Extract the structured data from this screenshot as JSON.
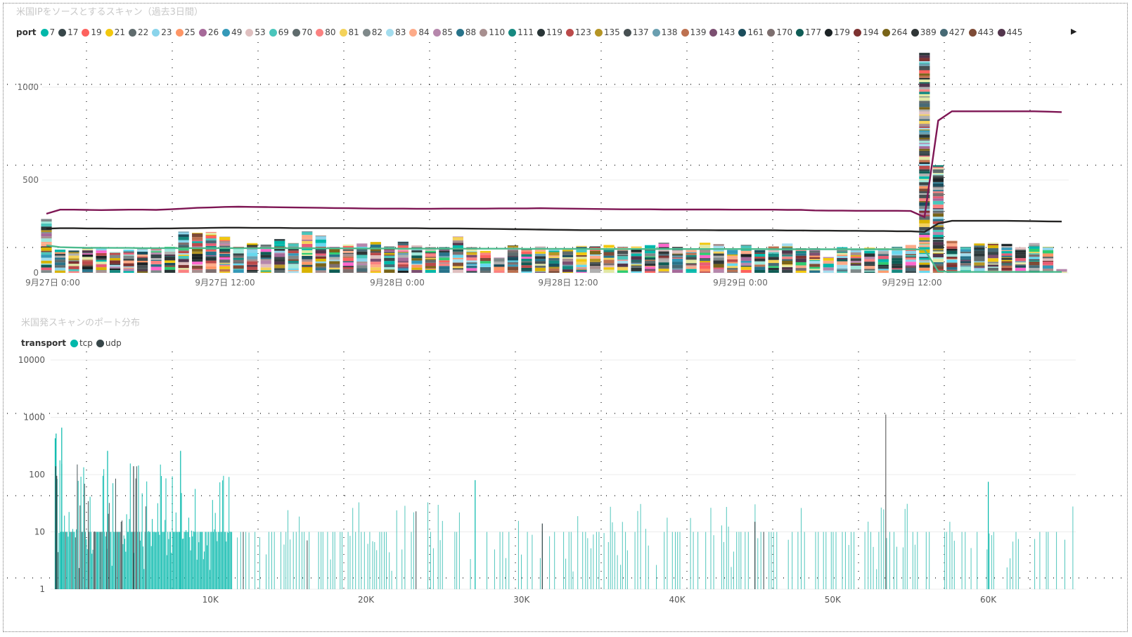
{
  "top_panel": {
    "title": "米国IPをソースとするスキャン（過去3日間）",
    "legend_title": "port",
    "legend_more_icon": "triangle-right-icon"
  },
  "bottom_panel": {
    "title": "米国発スキャンのポート分布",
    "legend_title": "transport"
  },
  "chart_data": [
    {
      "type": "bar",
      "stacked": true,
      "title": "米国IPをソースとするスキャン（過去3日間）",
      "legend_title": "port",
      "legend_position": "top-left",
      "grid": true,
      "ylim": [
        0,
        1200
      ],
      "y_ticks": [
        0,
        500,
        1000
      ],
      "x_ticks": [
        "9月27日 0:00",
        "9月27日 12:00",
        "9月28日 0:00",
        "9月28日 12:00",
        "9月29日 0:00",
        "9月29日 12:00"
      ],
      "ports": [
        {
          "name": "7",
          "color": "#01B8AA"
        },
        {
          "name": "17",
          "color": "#374649"
        },
        {
          "name": "19",
          "color": "#FD625E"
        },
        {
          "name": "21",
          "color": "#F2C80F"
        },
        {
          "name": "22",
          "color": "#5F6B6D"
        },
        {
          "name": "23",
          "color": "#8AD4EB"
        },
        {
          "name": "25",
          "color": "#FE9666"
        },
        {
          "name": "26",
          "color": "#A66999"
        },
        {
          "name": "49",
          "color": "#3599B8"
        },
        {
          "name": "53",
          "color": "#DFBFBF"
        },
        {
          "name": "69",
          "color": "#4AC5BB"
        },
        {
          "name": "70",
          "color": "#5F6B6D"
        },
        {
          "name": "80",
          "color": "#FB8281"
        },
        {
          "name": "81",
          "color": "#F4D25A"
        },
        {
          "name": "82",
          "color": "#7F898A"
        },
        {
          "name": "83",
          "color": "#A4DDEE"
        },
        {
          "name": "84",
          "color": "#FDAB89"
        },
        {
          "name": "85",
          "color": "#B687AC"
        },
        {
          "name": "88",
          "color": "#28738A"
        },
        {
          "name": "110",
          "color": "#A78F8F"
        },
        {
          "name": "111",
          "color": "#168980"
        },
        {
          "name": "119",
          "color": "#293537"
        },
        {
          "name": "123",
          "color": "#BB4A4A"
        },
        {
          "name": "135",
          "color": "#B59525"
        },
        {
          "name": "137",
          "color": "#475052"
        },
        {
          "name": "138",
          "color": "#6A9FB0"
        },
        {
          "name": "139",
          "color": "#BD7150"
        },
        {
          "name": "143",
          "color": "#7B4F71"
        },
        {
          "name": "161",
          "color": "#1B4D5C"
        },
        {
          "name": "170",
          "color": "#7D6F6F"
        },
        {
          "name": "177",
          "color": "#0F5C55"
        },
        {
          "name": "179",
          "color": "#1C2325"
        },
        {
          "name": "194",
          "color": "#7D3231"
        },
        {
          "name": "264",
          "color": "#796419"
        },
        {
          "name": "389",
          "color": "#303637"
        },
        {
          "name": "427",
          "color": "#476A75"
        },
        {
          "name": "443",
          "color": "#7E4B36"
        },
        {
          "name": "445",
          "color": "#52354C"
        }
      ],
      "totals": [
        290,
        125,
        120,
        132,
        138,
        112,
        125,
        135,
        130,
        140,
        222,
        215,
        220,
        195,
        140,
        160,
        152,
        182,
        160,
        222,
        200,
        140,
        152,
        158,
        166,
        142,
        168,
        148,
        138,
        138,
        195,
        138,
        118,
        82,
        148,
        130,
        142,
        132,
        128,
        145,
        142,
        150,
        140,
        142,
        150,
        162,
        140,
        130,
        162,
        155,
        130,
        150,
        122,
        142,
        158,
        132,
        132,
        85,
        138,
        130,
        135,
        132,
        140,
        150,
        1185,
        580,
        172,
        140,
        158,
        162,
        156,
        138,
        160,
        140,
        20
      ],
      "lines": [
        {
          "color": "#7E1654",
          "values": [
            318,
            340,
            340,
            339,
            338,
            339,
            340,
            340,
            339,
            342,
            346,
            350,
            352,
            355,
            356,
            355,
            354,
            353,
            352,
            351,
            350,
            349,
            348,
            347,
            346,
            346,
            346,
            345,
            345,
            346,
            346,
            346,
            346,
            347,
            347,
            347,
            348,
            347,
            346,
            345,
            344,
            343,
            342,
            342,
            342,
            341,
            341,
            341,
            341,
            341,
            340,
            340,
            340,
            340,
            339,
            339,
            336,
            335,
            335,
            334,
            334,
            334,
            334,
            333,
            300,
            820,
            870,
            870,
            870,
            870,
            870,
            870,
            870,
            868,
            866
          ]
        },
        {
          "color": "#252423",
          "values": [
            238,
            240,
            240,
            239,
            239,
            238,
            238,
            238,
            239,
            239,
            240,
            241,
            242,
            243,
            243,
            242,
            242,
            242,
            241,
            241,
            241,
            241,
            241,
            240,
            240,
            240,
            240,
            240,
            239,
            239,
            239,
            238,
            237,
            236,
            235,
            234,
            233,
            232,
            231,
            230,
            230,
            230,
            230,
            230,
            230,
            230,
            230,
            230,
            230,
            229,
            229,
            229,
            229,
            229,
            228,
            228,
            227,
            227,
            226,
            226,
            225,
            225,
            224,
            224,
            220,
            265,
            280,
            280,
            280,
            280,
            280,
            279,
            278,
            277,
            276
          ]
        },
        {
          "color": "#4CBB8E",
          "values": [
            148,
            138,
            136,
            135,
            135,
            134,
            134,
            133,
            133,
            133,
            133,
            133,
            133,
            133,
            133,
            133,
            133,
            133,
            133,
            133,
            132,
            132,
            132,
            131,
            131,
            131,
            130,
            130,
            130,
            130,
            130,
            130,
            130,
            130,
            130,
            129,
            129,
            129,
            129,
            129,
            128,
            128,
            128,
            128,
            128,
            128,
            128,
            128,
            128,
            128,
            128,
            128,
            128,
            127,
            127,
            127,
            127,
            127,
            127,
            127,
            127,
            127,
            127,
            127,
            125,
            8,
            5,
            5,
            5,
            5,
            5,
            5,
            5,
            5,
            5
          ]
        }
      ]
    },
    {
      "type": "bar",
      "title": "米国発スキャンのポート分布",
      "legend_title": "transport",
      "legend_position": "top-left",
      "series": [
        {
          "name": "tcp",
          "color": "#01B8AA"
        },
        {
          "name": "udp",
          "color": "#374649"
        }
      ],
      "y_scale": "log",
      "ylim": [
        1,
        10000
      ],
      "y_ticks": [
        1,
        10,
        100,
        1000,
        10000
      ],
      "xlim": [
        0,
        65535
      ],
      "x_ticks": [
        10000,
        20000,
        30000,
        40000,
        50000,
        60000
      ],
      "x_tick_labels": [
        "10K",
        "20K",
        "30K",
        "40K",
        "50K",
        "60K"
      ],
      "peaks": [
        {
          "series": "tcp",
          "x": 80,
          "y": 520
        },
        {
          "series": "tcp",
          "x": 443,
          "y": 660
        },
        {
          "series": "tcp",
          "x": 22,
          "y": 430
        },
        {
          "series": "udp",
          "x": 123,
          "y": 95
        },
        {
          "series": "udp",
          "x": 53,
          "y": 140
        },
        {
          "series": "udp",
          "x": 5060,
          "y": 140
        },
        {
          "series": "tcp",
          "x": 3389,
          "y": 260
        },
        {
          "series": "tcp",
          "x": 8080,
          "y": 260
        },
        {
          "series": "udp",
          "x": 53413,
          "y": 1120
        },
        {
          "series": "tcp",
          "x": 27017,
          "y": 80
        },
        {
          "series": "tcp",
          "x": 60001,
          "y": 75
        },
        {
          "series": "udp",
          "x": 31337,
          "y": 14
        },
        {
          "series": "udp",
          "x": 45000,
          "y": 15
        }
      ],
      "note_bulk": "thousands of ports each with roughly 1–40 hits, most frequent below 12K"
    }
  ]
}
